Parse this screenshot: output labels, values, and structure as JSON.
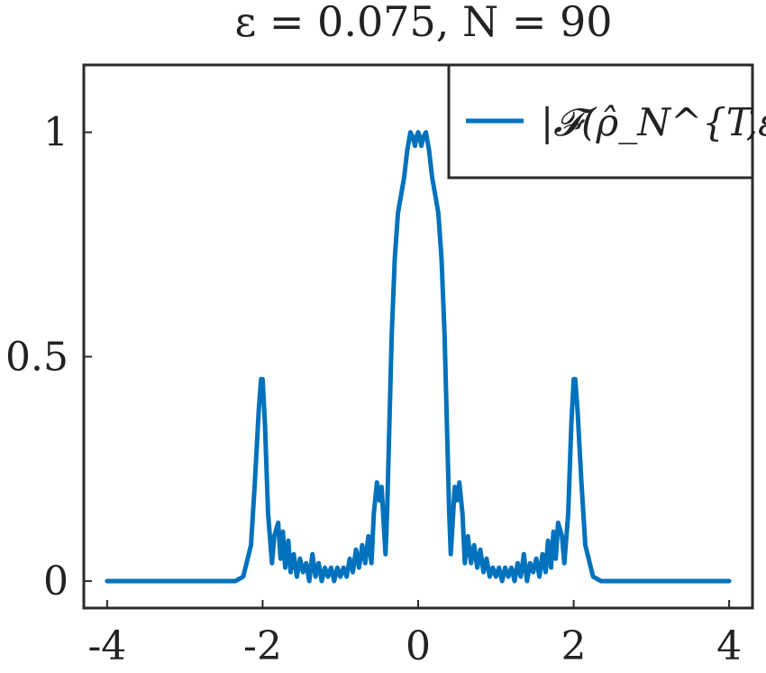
{
  "chart_data": {
    "type": "line",
    "title": "ε = 0.075, N = 90",
    "xlabel": "",
    "ylabel": "",
    "xlim": [
      -4.3,
      4.3
    ],
    "ylim": [
      -0.06,
      1.15
    ],
    "xticks": [
      -4,
      -2,
      0,
      2,
      4
    ],
    "xtick_labels": [
      "-4",
      "-2",
      "0",
      "2",
      "4"
    ],
    "yticks": [
      0,
      0.5,
      1
    ],
    "ytick_labels": [
      "0",
      "0.5",
      "1"
    ],
    "grid": false,
    "legend_position": "top-right",
    "series": [
      {
        "name": "|𝓕(ρ̂_N^{T,ε})|",
        "color": "#0072BD",
        "x": [
          -4.0,
          -3.0,
          -2.35,
          -2.25,
          -2.15,
          -2.1,
          -2.05,
          -2.02,
          -2.0,
          -1.97,
          -1.93,
          -1.88,
          -1.85,
          -1.8,
          -1.77,
          -1.74,
          -1.71,
          -1.67,
          -1.64,
          -1.6,
          -1.56,
          -1.52,
          -1.48,
          -1.44,
          -1.4,
          -1.36,
          -1.32,
          -1.28,
          -1.24,
          -1.2,
          -1.16,
          -1.12,
          -1.08,
          -1.04,
          -1.0,
          -0.96,
          -0.92,
          -0.88,
          -0.84,
          -0.8,
          -0.76,
          -0.72,
          -0.68,
          -0.64,
          -0.6,
          -0.57,
          -0.53,
          -0.5,
          -0.47,
          -0.44,
          -0.42,
          -0.4,
          -0.37,
          -0.34,
          -0.3,
          -0.26,
          -0.22,
          -0.18,
          -0.14,
          -0.1,
          -0.07,
          -0.04,
          -0.02,
          0.0,
          0.02,
          0.04,
          0.07,
          0.1,
          0.14,
          0.18,
          0.22,
          0.26,
          0.3,
          0.34,
          0.37,
          0.4,
          0.42,
          0.44,
          0.47,
          0.5,
          0.53,
          0.57,
          0.6,
          0.64,
          0.68,
          0.72,
          0.76,
          0.8,
          0.84,
          0.88,
          0.92,
          0.96,
          1.0,
          1.04,
          1.08,
          1.12,
          1.16,
          1.2,
          1.24,
          1.28,
          1.32,
          1.36,
          1.4,
          1.44,
          1.48,
          1.52,
          1.56,
          1.6,
          1.64,
          1.67,
          1.71,
          1.74,
          1.77,
          1.8,
          1.85,
          1.88,
          1.93,
          1.97,
          2.0,
          2.02,
          2.05,
          2.1,
          2.15,
          2.25,
          2.35,
          3.0,
          4.0
        ],
        "y": [
          0.0,
          0.0,
          0.0,
          0.01,
          0.08,
          0.22,
          0.38,
          0.45,
          0.45,
          0.35,
          0.15,
          0.04,
          0.1,
          0.13,
          0.05,
          0.11,
          0.03,
          0.09,
          0.02,
          0.06,
          0.01,
          0.05,
          0.02,
          0.04,
          0.0,
          0.06,
          0.01,
          0.04,
          0.0,
          0.03,
          0.01,
          0.03,
          0.0,
          0.03,
          0.01,
          0.03,
          0.01,
          0.05,
          0.02,
          0.07,
          0.03,
          0.08,
          0.04,
          0.1,
          0.04,
          0.15,
          0.22,
          0.18,
          0.21,
          0.12,
          0.06,
          0.15,
          0.35,
          0.55,
          0.72,
          0.82,
          0.86,
          0.9,
          0.96,
          1.0,
          0.99,
          0.97,
          0.99,
          1.0,
          0.99,
          0.97,
          0.99,
          1.0,
          0.96,
          0.9,
          0.86,
          0.82,
          0.72,
          0.55,
          0.35,
          0.15,
          0.06,
          0.12,
          0.21,
          0.18,
          0.22,
          0.15,
          0.04,
          0.1,
          0.04,
          0.08,
          0.03,
          0.07,
          0.02,
          0.05,
          0.01,
          0.03,
          0.01,
          0.03,
          0.0,
          0.03,
          0.01,
          0.03,
          0.0,
          0.04,
          0.01,
          0.06,
          0.0,
          0.04,
          0.02,
          0.05,
          0.01,
          0.06,
          0.02,
          0.09,
          0.03,
          0.11,
          0.05,
          0.13,
          0.1,
          0.04,
          0.15,
          0.35,
          0.45,
          0.45,
          0.38,
          0.22,
          0.08,
          0.01,
          0.0,
          0.0,
          0.0
        ]
      }
    ]
  }
}
